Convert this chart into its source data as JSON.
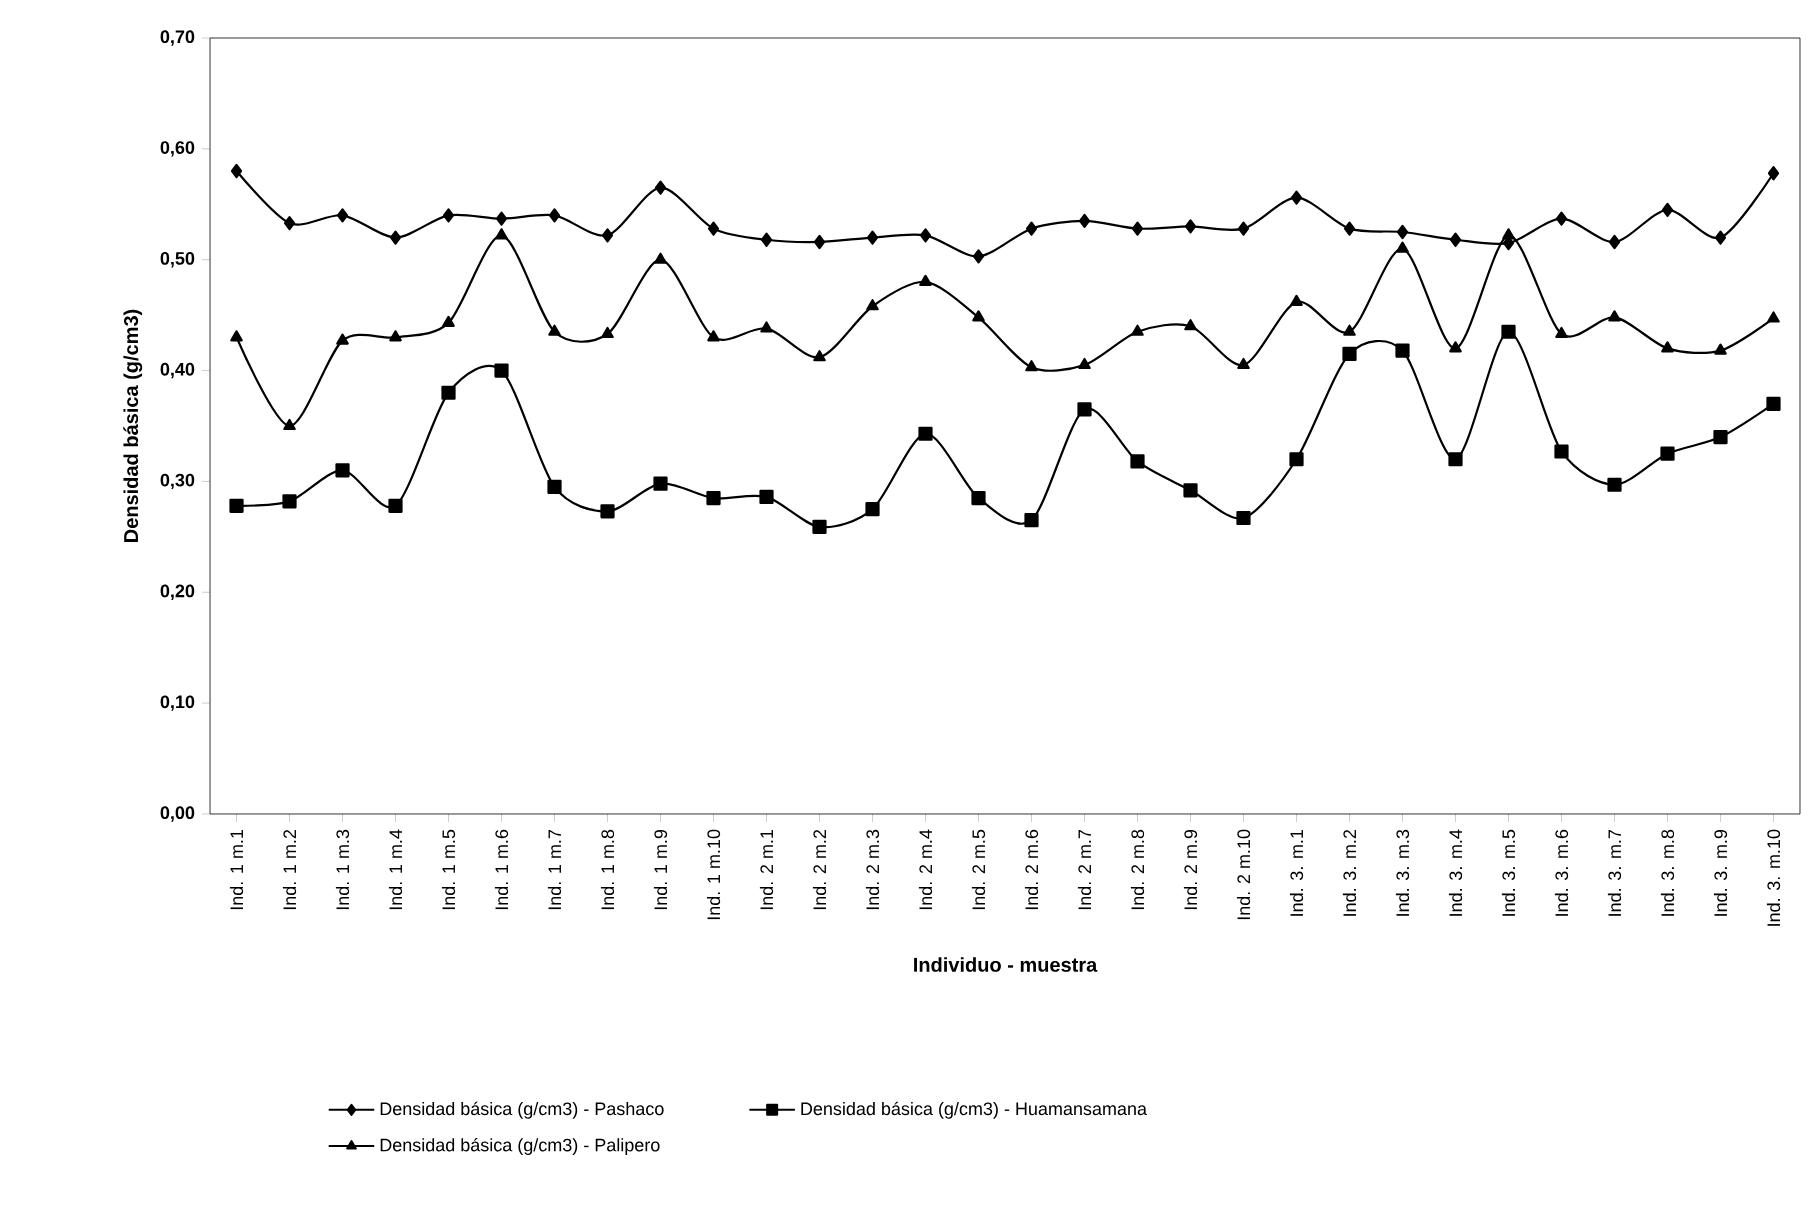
{
  "chart_data": {
    "type": "line",
    "xlabel": "Individuo - muestra",
    "ylabel": "Densidad básica (g/cm3)",
    "categories": [
      "Ind. 1 m.1",
      "Ind. 1 m.2",
      "Ind. 1 m.3",
      "Ind. 1 m.4",
      "Ind. 1 m.5",
      "Ind. 1 m.6",
      "Ind. 1 m.7",
      "Ind. 1 m.8",
      "Ind. 1 m.9",
      "Ind. 1 m.10",
      "Ind. 2 m.1",
      "Ind. 2 m.2",
      "Ind. 2 m.3",
      "Ind. 2 m.4",
      "Ind. 2 m.5",
      "Ind. 2 m.6",
      "Ind. 2 m.7",
      "Ind. 2 m.8",
      "Ind. 2 m.9",
      "Ind. 2 m.10",
      "Ind. 3. m.1",
      "Ind. 3. m.2",
      "Ind. 3. m.3",
      "Ind. 3. m.4",
      "Ind. 3. m.5",
      "Ind. 3. m.6",
      "Ind. 3. m.7",
      "Ind. 3. m.8",
      "Ind. 3. m.9",
      "Ind. 3. m.10"
    ],
    "series": [
      {
        "name": "Densidad básica (g/cm3) - Pashaco",
        "color": "#000000",
        "marker": "diamond",
        "values": [
          0.58,
          0.533,
          0.54,
          0.52,
          0.54,
          0.537,
          0.54,
          0.522,
          0.565,
          0.528,
          0.518,
          0.516,
          0.52,
          0.522,
          0.503,
          0.528,
          0.535,
          0.528,
          0.53,
          0.528,
          0.556,
          0.528,
          0.525,
          0.518,
          0.515,
          0.537,
          0.516,
          0.545,
          0.52,
          0.578
        ]
      },
      {
        "name": "Densidad básica (g/cm3) - Huamansamana",
        "color": "#000000",
        "marker": "square",
        "values": [
          0.278,
          0.282,
          0.31,
          0.278,
          0.38,
          0.4,
          0.295,
          0.273,
          0.298,
          0.285,
          0.286,
          0.259,
          0.275,
          0.343,
          0.285,
          0.265,
          0.365,
          0.318,
          0.292,
          0.267,
          0.32,
          0.415,
          0.418,
          0.32,
          0.435,
          0.327,
          0.297,
          0.325,
          0.34,
          0.37
        ]
      },
      {
        "name": "Densidad básica (g/cm3) - Palipero",
        "color": "#000000",
        "marker": "triangle",
        "values": [
          0.43,
          0.35,
          0.427,
          0.43,
          0.443,
          0.522,
          0.435,
          0.433,
          0.5,
          0.43,
          0.438,
          0.412,
          0.458,
          0.48,
          0.448,
          0.403,
          0.405,
          0.435,
          0.44,
          0.405,
          0.462,
          0.435,
          0.51,
          0.42,
          0.522,
          0.433,
          0.448,
          0.42,
          0.418,
          0.447
        ]
      }
    ],
    "ylim": [
      0,
      0.7
    ],
    "yticks": [
      {
        "value": 0,
        "label": "0,00"
      },
      {
        "value": 0.1,
        "label": "0,10"
      },
      {
        "value": 0.2,
        "label": "0,20"
      },
      {
        "value": 0.3,
        "label": "0,30"
      },
      {
        "value": 0.4,
        "label": "0,40"
      },
      {
        "value": 0.5,
        "label": "0,50"
      },
      {
        "value": 0.6,
        "label": "0,60"
      },
      {
        "value": 0.7,
        "label": "0,70"
      }
    ],
    "grid": false,
    "legend": "bottom",
    "line_style": "solid"
  }
}
